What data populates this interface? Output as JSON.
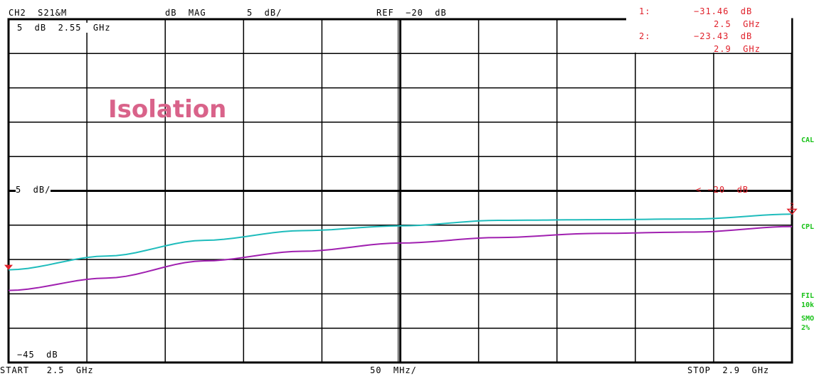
{
  "header": {
    "channel": "CH2  S21&M",
    "format": "dB  MAG",
    "scale": "5  dB/",
    "ref": "REF  −20  dB"
  },
  "markers": [
    {
      "id": "1",
      "label": "1:",
      "value": "−31.46  dB",
      "freq": "2.5  GHz"
    },
    {
      "id": "2",
      "label": "2:",
      "value": "−23.43  dB",
      "freq": "2.9  GHz"
    }
  ],
  "grid_text": {
    "top_left": "5  dB  2.55  GHz",
    "scale_mid": "5  dB/",
    "ref_level": "< −20  dB",
    "bottom_left": "−45  dB"
  },
  "annotation": "Isolation",
  "footer": {
    "start": "START   2.5  GHz",
    "span_div": "50  MHz/",
    "stop": "STOP  2.9  GHz"
  },
  "side_labels": {
    "cal": "CAL",
    "cpl": "CPL",
    "fil": "FIL",
    "fil_val": "10k",
    "smo": "SMO",
    "smo_val": "2%"
  },
  "colors": {
    "trace_upper": "#1fbcbc",
    "trace_lower": "#a020b0",
    "marker": "#e0202a",
    "side_text": "#19c219",
    "annotation": "#d9638a"
  },
  "chart_data": {
    "type": "line",
    "xlim": [
      2.5,
      2.9
    ],
    "ylim": [
      -45,
      5
    ],
    "x_unit": "GHz",
    "y_unit": "dB",
    "ref_value": -20,
    "x": [
      2.5,
      2.55,
      2.6,
      2.65,
      2.7,
      2.75,
      2.8,
      2.85,
      2.9
    ],
    "series": [
      {
        "values": [
          -31.5,
          -29.5,
          -27.2,
          -25.8,
          -25.1,
          -24.3,
          -24.2,
          -24.1,
          -23.4
        ]
      },
      {
        "values": [
          -34.5,
          -32.7,
          -30.2,
          -28.8,
          -27.6,
          -26.8,
          -26.2,
          -26.0,
          -25.2
        ]
      }
    ]
  }
}
